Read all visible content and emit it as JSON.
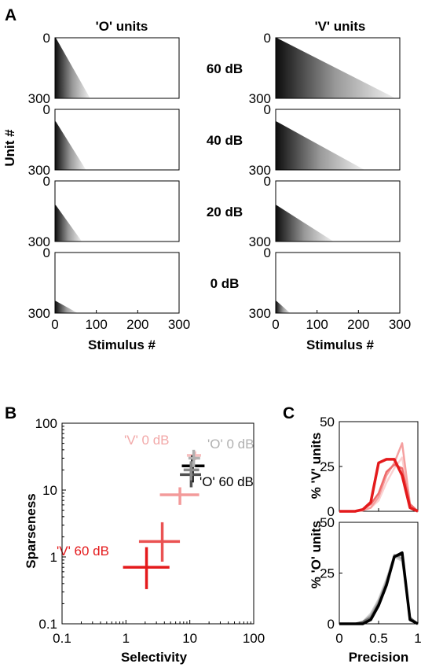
{
  "panel_labels": [
    "A",
    "B",
    "C"
  ],
  "colors": {
    "o_units": "#000000",
    "v_units": "#e41a1c",
    "o_light": "#b0b0b0",
    "v_light": "#f4a3a3"
  },
  "chart_data": [
    {
      "panel": "A",
      "type": "heatmap",
      "column_titles": [
        "'O' units",
        "'V' units"
      ],
      "level_labels": [
        "60 dB",
        "40 dB",
        "20 dB",
        "0 dB"
      ],
      "xlabel": "Stimulus #",
      "ylabel": "Unit #",
      "xlim": [
        0,
        300
      ],
      "ylim": [
        0,
        300
      ],
      "x_ticks": [
        "0",
        "100",
        "200",
        "300"
      ],
      "y_ticks": [
        "0",
        "300"
      ],
      "y_inverted": true,
      "fill_start_unit": {
        "O": [
          0,
          60,
          120,
          240
        ],
        "V": [
          0,
          60,
          120,
          240
        ]
      },
      "max_extent_stimulus": {
        "O": [
          85,
          75,
          65,
          55
        ],
        "V": [
          290,
          215,
          140,
          35
        ]
      }
    },
    {
      "panel": "B",
      "type": "scatter",
      "xlabel": "Selectivity",
      "ylabel": "Sparseness",
      "xscale": "log",
      "yscale": "log",
      "xlim": [
        0.1,
        100
      ],
      "ylim": [
        0.1,
        100
      ],
      "x_ticks": [
        "0.1",
        "1",
        "10",
        "100"
      ],
      "y_ticks": [
        "0.1",
        "1",
        "10",
        "100"
      ],
      "annotations": [
        "'V' 0 dB",
        "'O' 0 dB",
        "'O' 60 dB",
        "'V' 60 dB"
      ],
      "series": [
        {
          "group": "V",
          "level": "60 dB",
          "x": 2.1,
          "y": 0.7,
          "x_err": [
            0.9,
            4.8
          ],
          "y_err": [
            0.33,
            1.4
          ],
          "color": "#e41a1c"
        },
        {
          "group": "V",
          "level": "40 dB",
          "x": 3.7,
          "y": 1.7,
          "x_err": [
            1.6,
            7.0
          ],
          "y_err": [
            0.85,
            3.3
          ],
          "color": "#ea5252"
        },
        {
          "group": "V",
          "level": "20 dB",
          "x": 7.0,
          "y": 8.5,
          "x_err": [
            3.4,
            14.0
          ],
          "y_err": [
            6.0,
            11.0
          ],
          "color": "#f39a9a"
        },
        {
          "group": "V",
          "level": "0 dB",
          "x": 12.0,
          "y": 33.0,
          "x_err": [
            9.0,
            15.0
          ],
          "y_err": [
            28.0,
            38.0
          ],
          "color": "#f7c0c0"
        },
        {
          "group": "O",
          "level": "60 dB",
          "x": 11.0,
          "y": 23.0,
          "x_err": [
            7.5,
            17.0
          ],
          "y_err": [
            13.0,
            33.0
          ],
          "color": "#000000"
        },
        {
          "group": "O",
          "level": "40 dB",
          "x": 10.5,
          "y": 17.0,
          "x_err": [
            7.0,
            15.0
          ],
          "y_err": [
            11.0,
            26.0
          ],
          "color": "#505050"
        },
        {
          "group": "O",
          "level": "20 dB",
          "x": 10.5,
          "y": 20.0,
          "x_err": [
            8.0,
            14.0
          ],
          "y_err": [
            14.0,
            27.0
          ],
          "color": "#888888"
        },
        {
          "group": "O",
          "level": "0 dB",
          "x": 11.5,
          "y": 30.0,
          "x_err": [
            9.5,
            14.5
          ],
          "y_err": [
            22.0,
            40.0
          ],
          "color": "#b0b0b0"
        }
      ]
    },
    {
      "panel": "C",
      "type": "line",
      "subplots": [
        {
          "ylabel": "% 'V' units",
          "ylim": [
            0,
            50
          ],
          "y_ticks": [
            "0",
            "25",
            "50"
          ],
          "x": [
            0,
            0.1,
            0.2,
            0.3,
            0.4,
            0.5,
            0.6,
            0.7,
            0.8,
            0.9,
            1.0
          ],
          "series": [
            {
              "level": "0 dB",
              "color": "#fbd1d1",
              "values": [
                0,
                0,
                0,
                0.5,
                2,
                6,
                16,
                24,
                30,
                3,
                0
              ]
            },
            {
              "level": "20 dB",
              "color": "#f5a0a0",
              "values": [
                0,
                0,
                0,
                0.5,
                2,
                8,
                20,
                27,
                38,
                4,
                0
              ]
            },
            {
              "level": "40 dB",
              "color": "#ee6b6b",
              "values": [
                0,
                0,
                0,
                1,
                4,
                10,
                22,
                26,
                24,
                4,
                0
              ]
            },
            {
              "level": "60 dB",
              "color": "#e41a1c",
              "values": [
                0,
                0,
                0,
                1,
                5,
                27,
                29,
                29,
                20,
                2,
                0
              ]
            }
          ]
        },
        {
          "ylabel": "% 'O' units",
          "xlabel": "Precision",
          "ylim": [
            0,
            50
          ],
          "y_ticks": [
            "0",
            "25",
            "50"
          ],
          "x_ticks": [
            "0",
            "0.5",
            "1"
          ],
          "x": [
            0,
            0.1,
            0.2,
            0.3,
            0.4,
            0.5,
            0.6,
            0.7,
            0.8,
            0.9,
            1.0
          ],
          "series": [
            {
              "level": "0 dB",
              "color": "#cfcfcf",
              "values": [
                0,
                0,
                0,
                1,
                5,
                12,
                22,
                33,
                31,
                3,
                0
              ]
            },
            {
              "level": "20 dB",
              "color": "#a8a8a8",
              "values": [
                0,
                0,
                0,
                1,
                4,
                11,
                21,
                34,
                32,
                3,
                0
              ]
            },
            {
              "level": "40 dB",
              "color": "#6a6a6a",
              "values": [
                0,
                0,
                0,
                1,
                3,
                10,
                20,
                33,
                34,
                3,
                0
              ]
            },
            {
              "level": "60 dB",
              "color": "#000000",
              "values": [
                0,
                0,
                0,
                0,
                2,
                9,
                19,
                33,
                35,
                2,
                0
              ]
            }
          ]
        }
      ]
    }
  ]
}
